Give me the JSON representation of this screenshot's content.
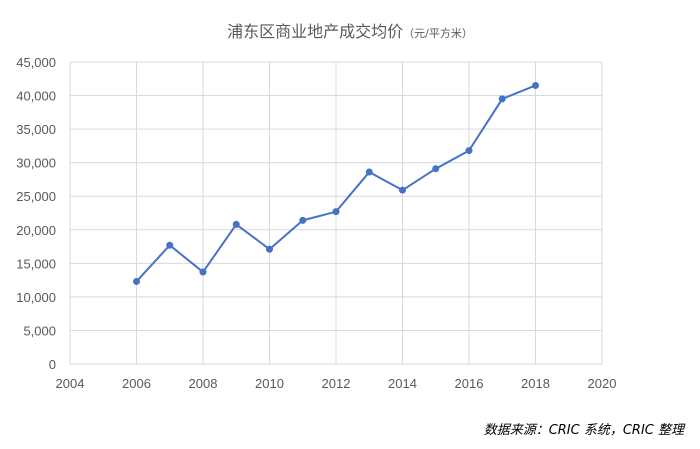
{
  "chart_data": {
    "type": "scatter",
    "title": "浦东区商业地产成交均价",
    "unit": "（元/平方米）",
    "source": "数据来源：CRIC 系统，CRIC 整理",
    "grid": true,
    "line_color": "#4472C4",
    "grid_color": "#D9D9D9",
    "xlim": [
      2004,
      2020
    ],
    "ylim": [
      0,
      45000
    ],
    "x_ticks": [
      2004,
      2006,
      2008,
      2010,
      2012,
      2014,
      2016,
      2018,
      2020
    ],
    "y_ticks": [
      0,
      5000,
      10000,
      15000,
      20000,
      25000,
      30000,
      35000,
      40000,
      45000
    ],
    "x_tick_labels": [
      "2004",
      "2006",
      "2008",
      "2010",
      "2012",
      "2014",
      "2016",
      "2018",
      "2020"
    ],
    "y_tick_labels": [
      "0",
      "5,000",
      "10,000",
      "15,000",
      "20,000",
      "25,000",
      "30,000",
      "35,000",
      "40,000",
      "45,000"
    ],
    "series": [
      {
        "x": [
          2006,
          2007,
          2008,
          2009,
          2010,
          2011,
          2012,
          2013,
          2014,
          2015,
          2016,
          2017,
          2018
        ],
        "y": [
          12300,
          17700,
          13700,
          20800,
          17100,
          21400,
          22700,
          28600,
          25900,
          29100,
          31800,
          39500,
          41500
        ]
      }
    ]
  }
}
